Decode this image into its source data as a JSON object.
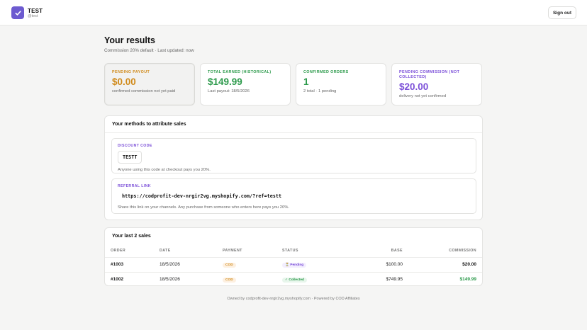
{
  "header": {
    "brand_name": "TEST",
    "brand_handle": "@test",
    "signout_label": "Sign out"
  },
  "page": {
    "title": "Your results",
    "subtitle": "Commission 20% default · Last updated: now"
  },
  "stats": [
    {
      "label": "PENDING PAYOUT",
      "value": "$0.00",
      "note": "confirmed commission not yet paid",
      "color": "#d08a1a"
    },
    {
      "label": "TOTAL EARNED (HISTORICAL)",
      "value": "$149.99",
      "note": "Last payout: 18/5/2026",
      "color": "#2c9a4b"
    },
    {
      "label": "CONFIRMED ORDERS",
      "value": "1",
      "note": "2 total · 1 pending",
      "color": "#2c9a4b"
    },
    {
      "label": "PENDING COMMISSION (NOT COLLECTED)",
      "value": "$20.00",
      "note": "delivery not yet confirmed",
      "color": "#7b4fd8"
    }
  ],
  "methods": {
    "title": "Your methods to attribute sales",
    "discount": {
      "label": "DISCOUNT CODE",
      "code": "TESTT",
      "note": "Anyone using this code at checkout pays you 20%."
    },
    "referral": {
      "label": "REFERRAL LINK",
      "link": "https://codprofit-dev-nrgir2vg.myshopify.com/?ref=testt",
      "note": "Share this link on your channels. Any purchase from someone who enters here pays you 20%."
    }
  },
  "sales": {
    "title": "Your last 2 sales",
    "columns": [
      "ORDER",
      "DATE",
      "PAYMENT",
      "STATUS",
      "BASE",
      "COMMISSION"
    ],
    "rows": [
      {
        "order": "#1003",
        "date": "18/5/2026",
        "payment": "COD",
        "status": "⏳ Pending",
        "base": "$100.00",
        "commission": "$20.00"
      },
      {
        "order": "#1002",
        "date": "18/5/2026",
        "payment": "COD",
        "status": "✓ Collected",
        "base": "$749.95",
        "commission": "$149.99"
      }
    ]
  },
  "footer": {
    "text": "Owned by codprofit-dev-nrgir2vg.myshopify.com · Powered by COD Affiliates"
  },
  "colors": {
    "accent": "#6d5bd0",
    "orange": "#d08a1a",
    "green": "#2c9a4b",
    "purple": "#7b4fd8"
  },
  "icons": {
    "brand": "check-icon"
  }
}
